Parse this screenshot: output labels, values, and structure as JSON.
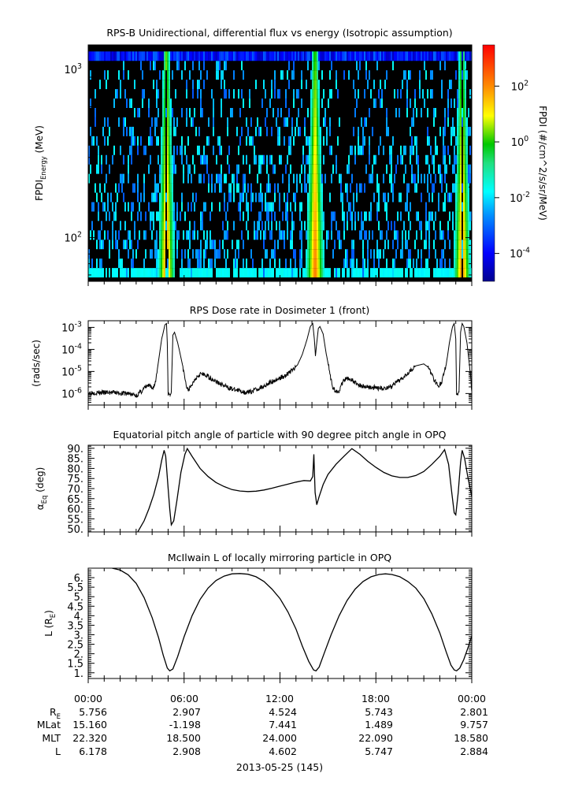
{
  "chart_data": [
    {
      "type": "heatmap",
      "title": "RPS-B  Unidirectional, differential flux vs energy (Isotropic assumption)",
      "ylabel": "FPDI",
      "ylabel_sub": "Energy",
      "ylabel_unit": "(MeV)",
      "yscale": "log",
      "ylim": [
        55,
        1400
      ],
      "y_ticks": [
        {
          "value": 100,
          "base": "10",
          "exp": "2"
        },
        {
          "value": 1000,
          "base": "10",
          "exp": "3"
        }
      ],
      "x_hours": [
        0,
        24
      ],
      "colorbar": {
        "label": "FPDI (#/cm^2/s/sr/MeV)",
        "scale": "log",
        "range": [
          1e-05,
          3000
        ],
        "ticks": [
          {
            "value": 0.0001,
            "base": "10",
            "exp": "-4"
          },
          {
            "value": 0.01,
            "base": "10",
            "exp": "-2"
          },
          {
            "value": 1,
            "base": "10",
            "exp": "0"
          },
          {
            "value": 100,
            "base": "10",
            "exp": "2"
          }
        ]
      },
      "bands": [
        {
          "name": "belt-crossing-1",
          "t_center_hours": 4.9,
          "half_width_low_hours": 0.55,
          "half_width_high_hours": 0.2,
          "gap_hours": 0.17
        },
        {
          "name": "belt-crossing-2",
          "t_center_hours": 14.2,
          "half_width_low_hours": 0.6,
          "half_width_high_hours": 0.2,
          "gap_hours": 0
        },
        {
          "name": "belt-crossing-3",
          "t_center_hours": 23.4,
          "half_width_low_hours": 0.55,
          "half_width_high_hours": 0.2,
          "gap_hours": 0.17
        }
      ]
    },
    {
      "type": "line",
      "title": "RPS  Dose rate in Dosimeter 1 (front)",
      "ylabel": "(rads/sec)",
      "yscale": "log",
      "ylim": [
        3e-07,
        0.002
      ],
      "y_ticks": [
        {
          "value": 1e-06,
          "base": "10",
          "exp": "-6"
        },
        {
          "value": 1e-05,
          "base": "10",
          "exp": "-5"
        },
        {
          "value": 0.0001,
          "base": "10",
          "exp": "-4"
        },
        {
          "value": 0.001,
          "base": "10",
          "exp": "-3"
        }
      ],
      "x_hours": [
        0,
        24
      ],
      "series": [
        {
          "points": [
            [
              0,
              1.1e-06
            ],
            [
              1.5,
              1.1e-06
            ],
            [
              2.5,
              1e-06
            ],
            [
              3.0,
              8e-07
            ],
            [
              3.3,
              1.2e-06
            ],
            [
              3.6,
              2e-06
            ],
            [
              3.8,
              2.3e-06
            ],
            [
              4.0,
              1.6e-06
            ],
            [
              4.2,
              3e-06
            ],
            [
              4.4,
              3e-05
            ],
            [
              4.6,
              0.0003
            ],
            [
              4.8,
              0.0013
            ],
            [
              4.9,
              0.0015
            ],
            [
              4.95,
              0.0002
            ],
            [
              5.0,
              1e-06
            ],
            [
              5.2,
              1e-06
            ],
            [
              5.3,
              0.00045
            ],
            [
              5.4,
              0.0006
            ],
            [
              5.6,
              0.0002
            ],
            [
              5.9,
              2e-05
            ],
            [
              6.1,
              3e-06
            ],
            [
              6.2,
              1.5e-06
            ],
            [
              6.4,
              1.8e-06
            ],
            [
              6.7,
              5e-06
            ],
            [
              7.0,
              8e-06
            ],
            [
              7.5,
              6e-06
            ],
            [
              8.0,
              3.5e-06
            ],
            [
              8.5,
              2.2e-06
            ],
            [
              9.0,
              1.6e-06
            ],
            [
              9.5,
              1.3e-06
            ],
            [
              10.0,
              1.1e-06
            ],
            [
              10.5,
              1.5e-06
            ],
            [
              11.0,
              2.2e-06
            ],
            [
              11.5,
              3.5e-06
            ],
            [
              12.0,
              5e-06
            ],
            [
              12.5,
              8e-06
            ],
            [
              12.8,
              1.2e-05
            ],
            [
              13.1,
              2e-05
            ],
            [
              13.4,
              6e-05
            ],
            [
              13.7,
              0.0003
            ],
            [
              13.9,
              0.0011
            ],
            [
              14.05,
              0.0015
            ],
            [
              14.15,
              0.0003
            ],
            [
              14.22,
              5e-05
            ],
            [
              14.3,
              0.0002
            ],
            [
              14.4,
              0.0009
            ],
            [
              14.5,
              0.0011
            ],
            [
              14.7,
              0.0005
            ],
            [
              14.9,
              6e-05
            ],
            [
              15.1,
              1e-05
            ],
            [
              15.3,
              2e-06
            ],
            [
              15.5,
              1.2e-06
            ],
            [
              15.7,
              1.4e-06
            ],
            [
              16.0,
              4e-06
            ],
            [
              16.3,
              5e-06
            ],
            [
              16.6,
              3.5e-06
            ],
            [
              17.0,
              2.3e-06
            ],
            [
              17.5,
              2e-06
            ],
            [
              18.0,
              1.8e-06
            ],
            [
              18.5,
              1.7e-06
            ],
            [
              19.0,
              2.2e-06
            ],
            [
              19.5,
              4e-06
            ],
            [
              20.0,
              9e-06
            ],
            [
              20.5,
              1.8e-05
            ],
            [
              21.0,
              2.2e-05
            ],
            [
              21.3,
              1.5e-05
            ],
            [
              21.6,
              5e-06
            ],
            [
              21.9,
              2.2e-06
            ],
            [
              22.1,
              3e-06
            ],
            [
              22.4,
              2e-05
            ],
            [
              22.6,
              0.0002
            ],
            [
              22.8,
              0.0011
            ],
            [
              22.9,
              0.0015
            ],
            [
              23.0,
              0.0003
            ],
            [
              23.05,
              1e-06
            ],
            [
              23.2,
              1e-06
            ],
            [
              23.3,
              0.0006
            ],
            [
              23.4,
              0.0015
            ],
            [
              23.5,
              0.0011
            ],
            [
              23.7,
              0.0002
            ],
            [
              23.9,
              1e-05
            ],
            [
              24.0,
              1.2e-06
            ]
          ]
        }
      ]
    },
    {
      "type": "line",
      "title": "Equatorial pitch angle of particle with 90 degree pitch angle in OPQ",
      "ylabel": "α",
      "ylabel_sub": "Eq",
      "ylabel_unit": "(deg)",
      "ylim": [
        48.5,
        91.5
      ],
      "y_ticks": [
        "50.",
        "55.",
        "60.",
        "65.",
        "70.",
        "75.",
        "80.",
        "85.",
        "90."
      ],
      "x_hours": [
        0,
        24
      ],
      "series": [
        {
          "points": [
            [
              3.1,
              48.5
            ],
            [
              3.5,
              54
            ],
            [
              3.8,
              60
            ],
            [
              4.1,
              67
            ],
            [
              4.4,
              76
            ],
            [
              4.6,
              84
            ],
            [
              4.75,
              89
            ],
            [
              4.85,
              86
            ],
            [
              5.0,
              70
            ],
            [
              5.1,
              60
            ],
            [
              5.2,
              52
            ],
            [
              5.35,
              54
            ],
            [
              5.55,
              64
            ],
            [
              5.8,
              78
            ],
            [
              6.05,
              87
            ],
            [
              6.2,
              89.8
            ],
            [
              6.5,
              86
            ],
            [
              7.0,
              80
            ],
            [
              7.5,
              76
            ],
            [
              8.0,
              73
            ],
            [
              8.5,
              71
            ],
            [
              9.0,
              69.5
            ],
            [
              9.5,
              68.8
            ],
            [
              10.0,
              68.5
            ],
            [
              10.5,
              68.7
            ],
            [
              11.0,
              69.3
            ],
            [
              11.5,
              70.2
            ],
            [
              12.0,
              71.2
            ],
            [
              12.5,
              72.2
            ],
            [
              13.0,
              73.2
            ],
            [
              13.5,
              74
            ],
            [
              13.9,
              73.8
            ],
            [
              14.05,
              76
            ],
            [
              14.12,
              87
            ],
            [
              14.2,
              68
            ],
            [
              14.3,
              62
            ],
            [
              14.45,
              66
            ],
            [
              14.7,
              72
            ],
            [
              15.0,
              77
            ],
            [
              15.5,
              82
            ],
            [
              16.0,
              86
            ],
            [
              16.5,
              89.8
            ],
            [
              17.0,
              87
            ],
            [
              17.5,
              83.5
            ],
            [
              18.0,
              80.5
            ],
            [
              18.5,
              78
            ],
            [
              19.0,
              76.3
            ],
            [
              19.5,
              75.5
            ],
            [
              20.0,
              75.5
            ],
            [
              20.5,
              76.5
            ],
            [
              21.0,
              78.5
            ],
            [
              21.5,
              82
            ],
            [
              22.0,
              86
            ],
            [
              22.3,
              89.3
            ],
            [
              22.55,
              82
            ],
            [
              22.75,
              68
            ],
            [
              22.9,
              58
            ],
            [
              23.0,
              57
            ],
            [
              23.15,
              68
            ],
            [
              23.3,
              83
            ],
            [
              23.4,
              89
            ],
            [
              23.55,
              85
            ],
            [
              23.75,
              76
            ],
            [
              24.0,
              66
            ]
          ]
        }
      ]
    },
    {
      "type": "line",
      "title": "McIlwain L of locally mirroring particle in OPQ",
      "ylabel": "L",
      "ylabel_sub": "E",
      "ylabel_unit": "(R )",
      "ylim": [
        0.7,
        6.5
      ],
      "y_ticks": [
        "1.",
        "1.5",
        "2.",
        "2.5",
        "3.",
        "3.5",
        "4.",
        "4.5",
        "5.",
        "5.5",
        "6."
      ],
      "x_hours": [
        0,
        24
      ],
      "series": [
        {
          "points": [
            [
              1.5,
              6.5
            ],
            [
              2.0,
              6.4
            ],
            [
              2.5,
              6.15
            ],
            [
              3.0,
              5.7
            ],
            [
              3.5,
              4.95
            ],
            [
              4.0,
              3.9
            ],
            [
              4.4,
              2.85
            ],
            [
              4.7,
              1.9
            ],
            [
              4.95,
              1.25
            ],
            [
              5.1,
              1.1
            ],
            [
              5.3,
              1.2
            ],
            [
              5.6,
              1.85
            ],
            [
              6.0,
              2.9
            ],
            [
              6.5,
              4.0
            ],
            [
              7.0,
              4.85
            ],
            [
              7.5,
              5.45
            ],
            [
              8.0,
              5.85
            ],
            [
              8.5,
              6.08
            ],
            [
              9.0,
              6.2
            ],
            [
              9.5,
              6.22
            ],
            [
              10.0,
              6.18
            ],
            [
              10.5,
              6.05
            ],
            [
              11.0,
              5.8
            ],
            [
              11.5,
              5.4
            ],
            [
              12.0,
              4.9
            ],
            [
              12.5,
              4.2
            ],
            [
              13.0,
              3.3
            ],
            [
              13.4,
              2.4
            ],
            [
              13.8,
              1.6
            ],
            [
              14.1,
              1.15
            ],
            [
              14.25,
              1.1
            ],
            [
              14.45,
              1.3
            ],
            [
              14.8,
              2.1
            ],
            [
              15.2,
              3.0
            ],
            [
              15.7,
              4.0
            ],
            [
              16.2,
              4.8
            ],
            [
              16.7,
              5.4
            ],
            [
              17.2,
              5.8
            ],
            [
              17.7,
              6.05
            ],
            [
              18.2,
              6.17
            ],
            [
              18.6,
              6.2
            ],
            [
              19.0,
              6.17
            ],
            [
              19.5,
              6.05
            ],
            [
              20.0,
              5.8
            ],
            [
              20.5,
              5.45
            ],
            [
              21.0,
              4.9
            ],
            [
              21.5,
              4.1
            ],
            [
              22.0,
              3.1
            ],
            [
              22.4,
              2.1
            ],
            [
              22.7,
              1.4
            ],
            [
              22.9,
              1.15
            ],
            [
              23.05,
              1.1
            ],
            [
              23.25,
              1.25
            ],
            [
              23.5,
              1.7
            ],
            [
              23.8,
              2.4
            ],
            [
              24.0,
              2.95
            ]
          ]
        }
      ]
    }
  ],
  "x_axis": {
    "ticks": [
      "00:00",
      "06:00",
      "12:00",
      "18:00",
      "00:00"
    ],
    "date_label": "2013-05-25 (145)"
  },
  "ephemeris": [
    {
      "label": "R",
      "label_sub": "E",
      "values": [
        "5.756",
        "2.907",
        "4.524",
        "5.743",
        "2.801"
      ]
    },
    {
      "label": "MLat",
      "label_sub": "",
      "values": [
        "15.160",
        "-1.198",
        "7.441",
        "1.489",
        "9.757"
      ]
    },
    {
      "label": "MLT",
      "label_sub": "",
      "values": [
        "22.320",
        "18.500",
        "24.000",
        "22.090",
        "18.580"
      ]
    },
    {
      "label": "L",
      "label_sub": "",
      "values": [
        "6.178",
        "2.908",
        "4.602",
        "5.747",
        "2.884"
      ]
    }
  ]
}
